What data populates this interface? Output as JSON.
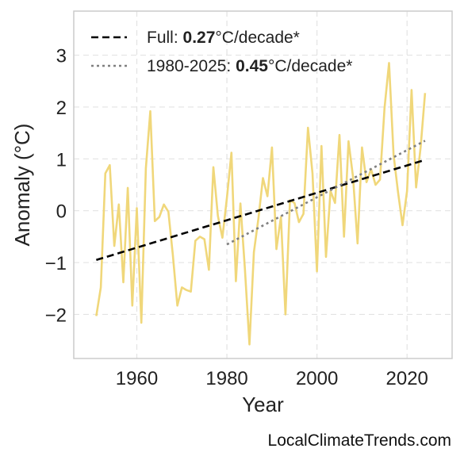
{
  "chart_data": {
    "type": "line",
    "xlabel": "Year",
    "ylabel": "Anomaly (°C)",
    "xlim": [
      1946,
      2030
    ],
    "ylim": [
      -2.85,
      3.85
    ],
    "xticks": [
      1960,
      1980,
      2000,
      2020
    ],
    "yticks": [
      -2,
      -1,
      0,
      1,
      2,
      3
    ],
    "grid": true,
    "legend_position": "top-left",
    "series": [
      {
        "color": "#f0d77a",
        "x": [
          1951,
          1952,
          1953,
          1954,
          1955,
          1956,
          1957,
          1958,
          1959,
          1960,
          1961,
          1962,
          1963,
          1964,
          1965,
          1966,
          1967,
          1968,
          1969,
          1970,
          1971,
          1972,
          1973,
          1974,
          1975,
          1976,
          1977,
          1978,
          1979,
          1980,
          1981,
          1982,
          1983,
          1984,
          1985,
          1986,
          1987,
          1988,
          1989,
          1990,
          1991,
          1992,
          1993,
          1994,
          1995,
          1996,
          1997,
          1998,
          1999,
          2000,
          2001,
          2002,
          2003,
          2004,
          2005,
          2006,
          2007,
          2008,
          2009,
          2010,
          2011,
          2012,
          2013,
          2014,
          2015,
          2016,
          2017,
          2018,
          2019,
          2020,
          2021,
          2022,
          2023,
          2024
        ],
        "values": [
          -2.03,
          -1.48,
          0.72,
          0.88,
          -0.68,
          0.12,
          -1.38,
          0.44,
          -1.83,
          0.05,
          -2.16,
          0.82,
          1.92,
          -0.2,
          -0.12,
          0.12,
          -0.02,
          -0.85,
          -1.83,
          -1.48,
          -1.53,
          -1.56,
          -0.58,
          -0.5,
          -0.55,
          -1.14,
          0.84,
          -0.1,
          -0.52,
          0.25,
          1.12,
          -1.36,
          0.14,
          -1.13,
          -2.58,
          -0.8,
          -0.15,
          0.63,
          0.28,
          1.22,
          -0.74,
          -0.12,
          -2.0,
          0.2,
          0.15,
          -0.22,
          -0.06,
          1.6,
          0.72,
          -1.17,
          1.25,
          -0.89,
          0.38,
          0.15,
          1.46,
          -0.5,
          1.34,
          0.65,
          -0.63,
          1.22,
          0.55,
          0.8,
          0.5,
          0.6,
          1.98,
          2.85,
          1.08,
          0.35,
          -0.28,
          0.38,
          2.33,
          0.45,
          1.22,
          2.27
        ]
      }
    ],
    "trends": [
      {
        "label_prefix": "Full: ",
        "label_value": "0.27",
        "label_suffix": "°C/decade*",
        "style": "dashed",
        "color": "#000000",
        "x": [
          1951,
          2024
        ],
        "y": [
          -0.95,
          0.98
        ]
      },
      {
        "label_prefix": "1980-2025: ",
        "label_value": "0.45",
        "label_suffix": "°C/decade*",
        "style": "dotted",
        "color": "#808080",
        "x": [
          1980,
          2024
        ],
        "y": [
          -0.65,
          1.35
        ]
      }
    ]
  },
  "credit": "LocalClimateTrends.com"
}
